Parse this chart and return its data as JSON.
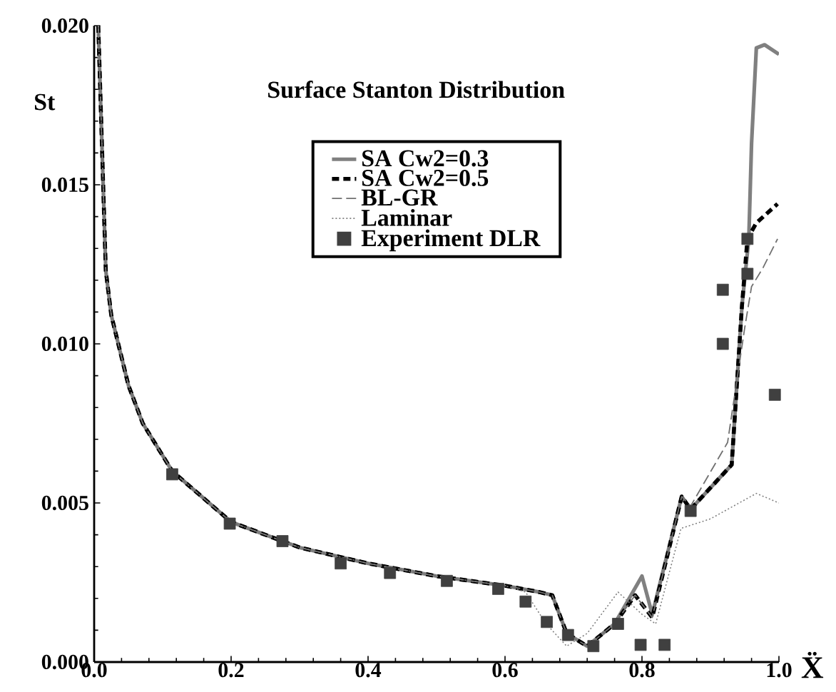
{
  "chart_data": {
    "type": "line",
    "title": "Surface Stanton Distribution",
    "xlabel": "Ẍ",
    "ylabel": "St",
    "xlim": [
      0,
      1
    ],
    "ylim": [
      0,
      0.02
    ],
    "xticks": [
      {
        "value": 0,
        "label": "0.0"
      },
      {
        "value": 0.2,
        "label": "0.2"
      },
      {
        "value": 0.4,
        "label": "0.4"
      },
      {
        "value": 0.6,
        "label": "0.6"
      },
      {
        "value": 0.8,
        "label": "0.8"
      },
      {
        "value": 1,
        "label": "1.0"
      }
    ],
    "yticks": [
      {
        "value": 0,
        "label": "0.000"
      },
      {
        "value": 0.005,
        "label": "0.005"
      },
      {
        "value": 0.01,
        "label": "0.010"
      },
      {
        "value": 0.015,
        "label": "0.015"
      },
      {
        "value": 0.02,
        "label": "0.020"
      }
    ],
    "grid": false,
    "legend": "top",
    "series": [
      {
        "name": "SA  Cw2=0.3",
        "color": "#808080",
        "line_style": "solid",
        "x": [
          0.006,
          0.017,
          0.025,
          0.05,
          0.071,
          0.114,
          0.2,
          0.3,
          0.4,
          0.5,
          0.6,
          0.65,
          0.669,
          0.69,
          0.72,
          0.76,
          0.8,
          0.815,
          0.858,
          0.871,
          0.931,
          0.946,
          0.956,
          0.96,
          0.967,
          0.979,
          1.0
        ],
        "values": [
          0.02,
          0.0123,
          0.0109,
          0.0087,
          0.0075,
          0.006,
          0.0044,
          0.0036,
          0.0031,
          0.0027,
          0.0024,
          0.0022,
          0.0021,
          0.0009,
          0.0005,
          0.0012,
          0.0027,
          0.0015,
          0.0052,
          0.0048,
          0.0062,
          0.0112,
          0.0133,
          0.0163,
          0.0193,
          0.0194,
          0.0191
        ]
      },
      {
        "name": "SA  Cw2=0.5",
        "color": "#000000",
        "line_style": "dashed",
        "x": [
          0.006,
          0.017,
          0.025,
          0.05,
          0.071,
          0.114,
          0.2,
          0.3,
          0.4,
          0.5,
          0.6,
          0.65,
          0.669,
          0.69,
          0.72,
          0.76,
          0.79,
          0.815,
          0.858,
          0.871,
          0.931,
          0.946,
          0.954,
          0.967,
          0.998
        ],
        "values": [
          0.02,
          0.0123,
          0.0109,
          0.0087,
          0.0075,
          0.006,
          0.0044,
          0.0036,
          0.0031,
          0.0027,
          0.0024,
          0.0022,
          0.0021,
          0.0009,
          0.0005,
          0.0012,
          0.0021,
          0.0014,
          0.0052,
          0.0048,
          0.0062,
          0.0112,
          0.0133,
          0.0138,
          0.0144
        ]
      },
      {
        "name": "BL-GR",
        "color": "#707070",
        "line_style": "dashed",
        "x": [
          0.006,
          0.017,
          0.025,
          0.05,
          0.071,
          0.114,
          0.2,
          0.3,
          0.4,
          0.5,
          0.6,
          0.65,
          0.669,
          0.69,
          0.72,
          0.76,
          0.79,
          0.815,
          0.858,
          0.871,
          0.898,
          0.925,
          0.95,
          0.96,
          0.977,
          0.998
        ],
        "values": [
          0.02,
          0.0123,
          0.0109,
          0.0087,
          0.0075,
          0.006,
          0.0044,
          0.0036,
          0.0031,
          0.0027,
          0.0024,
          0.0022,
          0.0021,
          0.0009,
          0.0005,
          0.0012,
          0.0021,
          0.0014,
          0.0052,
          0.0049,
          0.0059,
          0.0069,
          0.0105,
          0.0118,
          0.0124,
          0.0133
        ]
      },
      {
        "name": "Laminar",
        "color": "#808080",
        "line_style": "dotted",
        "x": [
          0.006,
          0.017,
          0.025,
          0.05,
          0.071,
          0.114,
          0.2,
          0.3,
          0.4,
          0.5,
          0.6,
          0.63,
          0.66,
          0.69,
          0.72,
          0.765,
          0.8,
          0.82,
          0.857,
          0.9,
          0.967,
          1.0
        ],
        "values": [
          0.02,
          0.0123,
          0.0109,
          0.0087,
          0.0075,
          0.006,
          0.0044,
          0.0036,
          0.0031,
          0.0027,
          0.0024,
          0.0022,
          0.0012,
          0.0005,
          0.0009,
          0.0022,
          0.0015,
          0.0012,
          0.0042,
          0.0045,
          0.0053,
          0.005
        ]
      },
      {
        "name": "Experiment DLR",
        "type": "scatter",
        "marker": "square",
        "color": "#404040",
        "x": [
          0.114,
          0.198,
          0.275,
          0.36,
          0.432,
          0.515,
          0.59,
          0.63,
          0.661,
          0.692,
          0.729,
          0.765,
          0.798,
          0.833,
          0.871,
          0.918,
          0.918,
          0.954,
          0.954,
          0.994
        ],
        "values": [
          0.0059,
          0.00435,
          0.0038,
          0.0031,
          0.0028,
          0.00255,
          0.0023,
          0.0019,
          0.00126,
          0.00085,
          0.0005,
          0.0012,
          0.00054,
          0.00054,
          0.00475,
          0.01,
          0.0117,
          0.0133,
          0.0122,
          0.0084
        ]
      }
    ]
  }
}
